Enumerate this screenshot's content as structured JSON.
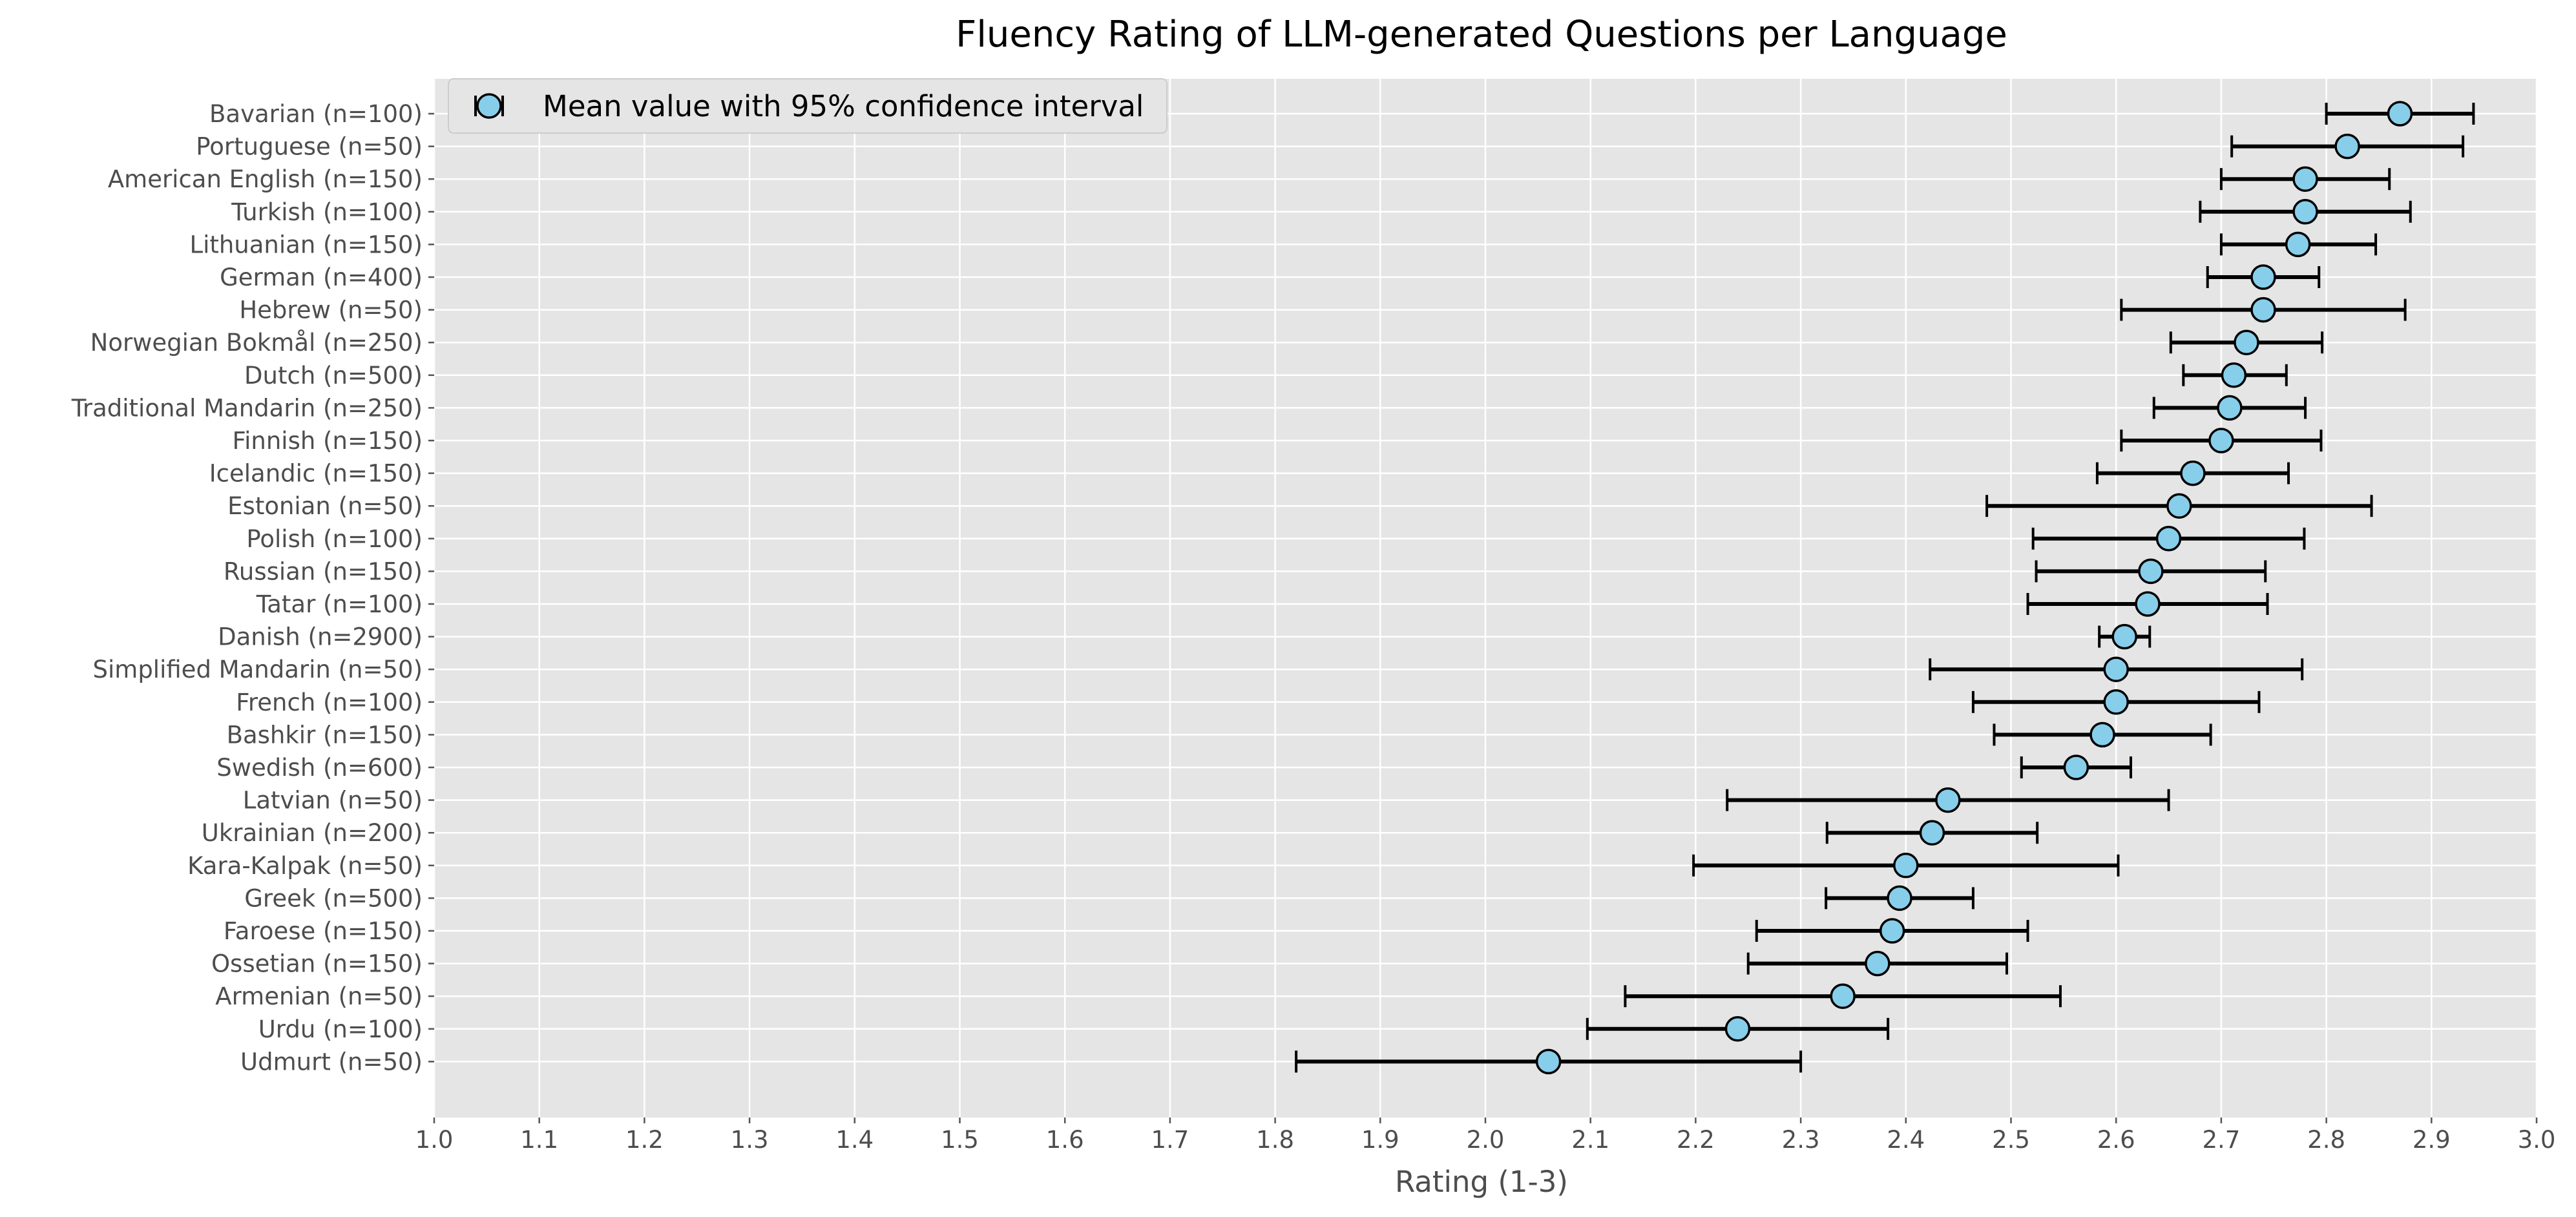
{
  "chart_data": {
    "type": "scatter",
    "title": "Fluency Rating of LLM-generated Questions per Language",
    "xlabel": "Rating (1-3)",
    "ylabel": "",
    "xlim": [
      1.0,
      3.0
    ],
    "xticks": [
      "1.0",
      "1.1",
      "1.2",
      "1.3",
      "1.4",
      "1.5",
      "1.6",
      "1.7",
      "1.8",
      "1.9",
      "2.0",
      "2.1",
      "2.2",
      "2.3",
      "2.4",
      "2.5",
      "2.6",
      "2.7",
      "2.8",
      "2.9",
      "3.0"
    ],
    "grid": true,
    "legend": {
      "position": "top-left",
      "label": "Mean value with 95% confidence interval"
    },
    "colors": {
      "marker_fill": "#87CEEB",
      "marker_edge": "#000000",
      "errorbar": "#000000",
      "background": "#E5E5E5",
      "grid": "#FFFFFF"
    },
    "series": [
      {
        "label": "Bavarian (n=100)",
        "mean": 2.87,
        "lower": 2.8,
        "upper": 2.94
      },
      {
        "label": "Portuguese (n=50)",
        "mean": 2.82,
        "lower": 2.71,
        "upper": 2.93
      },
      {
        "label": "American English (n=150)",
        "mean": 2.78,
        "lower": 2.7,
        "upper": 2.86
      },
      {
        "label": "Turkish (n=100)",
        "mean": 2.78,
        "lower": 2.68,
        "upper": 2.88
      },
      {
        "label": "Lithuanian (n=150)",
        "mean": 2.773,
        "lower": 2.7,
        "upper": 2.847
      },
      {
        "label": "German (n=400)",
        "mean": 2.74,
        "lower": 2.687,
        "upper": 2.793
      },
      {
        "label": "Hebrew (n=50)",
        "mean": 2.74,
        "lower": 2.605,
        "upper": 2.875
      },
      {
        "label": "Norwegian Bokmål (n=250)",
        "mean": 2.724,
        "lower": 2.652,
        "upper": 2.796
      },
      {
        "label": "Dutch (n=500)",
        "mean": 2.712,
        "lower": 2.664,
        "upper": 2.762
      },
      {
        "label": "Traditional Mandarin (n=250)",
        "mean": 2.708,
        "lower": 2.636,
        "upper": 2.78
      },
      {
        "label": "Finnish (n=150)",
        "mean": 2.7,
        "lower": 2.605,
        "upper": 2.795
      },
      {
        "label": "Icelandic (n=150)",
        "mean": 2.673,
        "lower": 2.582,
        "upper": 2.764
      },
      {
        "label": "Estonian (n=50)",
        "mean": 2.66,
        "lower": 2.477,
        "upper": 2.843
      },
      {
        "label": "Polish (n=100)",
        "mean": 2.65,
        "lower": 2.521,
        "upper": 2.779
      },
      {
        "label": "Russian (n=150)",
        "mean": 2.633,
        "lower": 2.524,
        "upper": 2.742
      },
      {
        "label": "Tatar (n=100)",
        "mean": 2.63,
        "lower": 2.516,
        "upper": 2.744
      },
      {
        "label": "Danish (n=2900)",
        "mean": 2.608,
        "lower": 2.584,
        "upper": 2.632
      },
      {
        "label": "Simplified Mandarin (n=50)",
        "mean": 2.6,
        "lower": 2.423,
        "upper": 2.777
      },
      {
        "label": "French (n=100)",
        "mean": 2.6,
        "lower": 2.464,
        "upper": 2.736
      },
      {
        "label": "Bashkir (n=150)",
        "mean": 2.587,
        "lower": 2.484,
        "upper": 2.69
      },
      {
        "label": "Swedish (n=600)",
        "mean": 2.562,
        "lower": 2.51,
        "upper": 2.614
      },
      {
        "label": "Latvian (n=50)",
        "mean": 2.44,
        "lower": 2.23,
        "upper": 2.65
      },
      {
        "label": "Ukrainian (n=200)",
        "mean": 2.425,
        "lower": 2.325,
        "upper": 2.525
      },
      {
        "label": "Kara-Kalpak (n=50)",
        "mean": 2.4,
        "lower": 2.198,
        "upper": 2.602
      },
      {
        "label": "Greek (n=500)",
        "mean": 2.394,
        "lower": 2.324,
        "upper": 2.464
      },
      {
        "label": "Faroese (n=150)",
        "mean": 2.387,
        "lower": 2.258,
        "upper": 2.516
      },
      {
        "label": "Ossetian (n=150)",
        "mean": 2.373,
        "lower": 2.25,
        "upper": 2.496
      },
      {
        "label": "Armenian (n=50)",
        "mean": 2.34,
        "lower": 2.133,
        "upper": 2.547
      },
      {
        "label": "Urdu (n=100)",
        "mean": 2.24,
        "lower": 2.097,
        "upper": 2.383
      },
      {
        "label": "Udmurt (n=50)",
        "mean": 2.06,
        "lower": 1.82,
        "upper": 2.3
      }
    ]
  }
}
